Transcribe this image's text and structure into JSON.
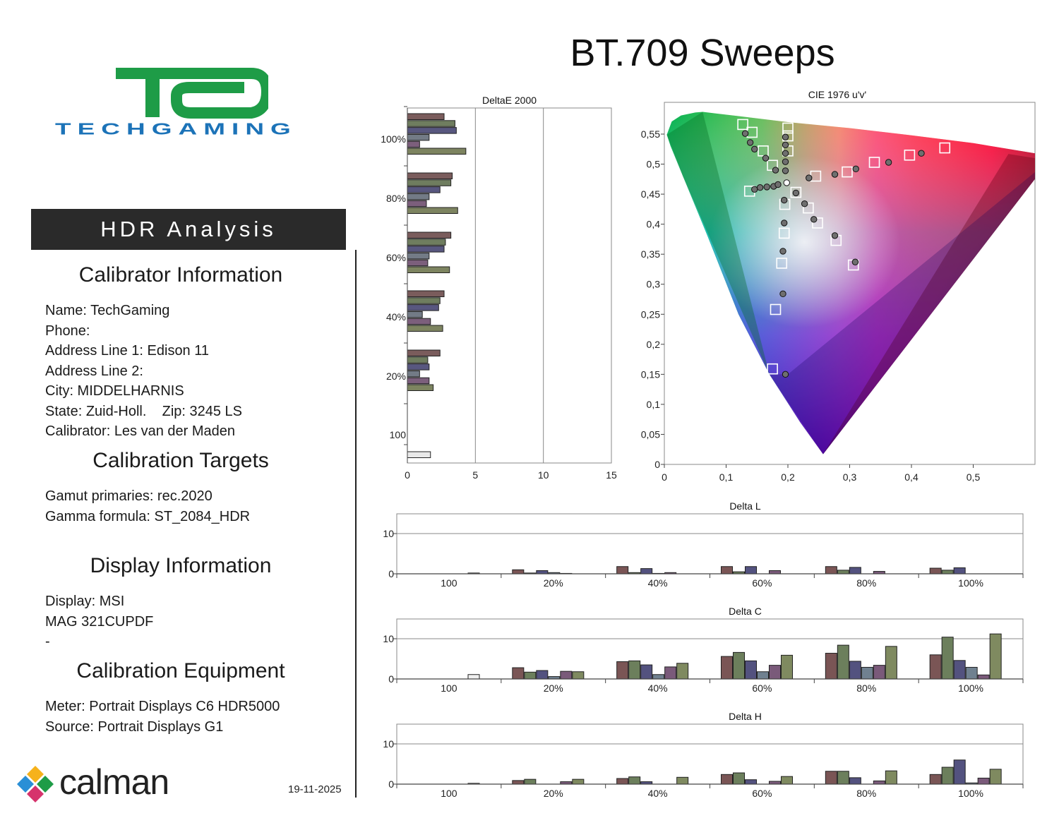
{
  "page_title": "BT.709 Sweeps",
  "logo": {
    "letters": "TG",
    "wordmark": "TECHGAMING",
    "color_green": "#1e9c47",
    "color_blue": "#1c73b8"
  },
  "left_panel": {
    "banner": "HDR Analysis",
    "calibrator": {
      "heading": "Calibrator Information",
      "lines": [
        "Name: TechGaming",
        "Phone:",
        "Address Line 1: Edison 11",
        "Address Line 2:",
        "City: MIDDELHARNIS",
        "State: Zuid-Holl.    Zip: 3245 LS",
        "Calibrator: Les van der Maden"
      ]
    },
    "targets": {
      "heading": "Calibration Targets",
      "lines": [
        "Gamut primaries: rec.2020",
        "Gamma formula: ST_2084_HDR"
      ]
    },
    "display": {
      "heading": "Display Information",
      "lines": [
        "Display: MSI",
        "MAG 321CUPDF",
        "-"
      ]
    },
    "equipment": {
      "heading": "Calibration Equipment",
      "lines": [
        "Meter: Portrait Displays C6 HDR5000",
        "Source: Portrait Displays G1"
      ]
    },
    "date": "19-11-2025",
    "brand": "calman"
  },
  "chart_data": [
    {
      "id": "deltae",
      "type": "bar",
      "orientation": "horizontal",
      "title": "DeltaE 2000",
      "xlim": [
        0,
        15
      ],
      "x_ticks": [
        "0",
        "5",
        "10",
        "15"
      ],
      "grid_x": [
        5,
        10,
        15
      ],
      "groups": [
        {
          "label": "100%",
          "values": [
            2.7,
            3.5,
            3.6,
            1.6,
            0.9,
            4.3
          ]
        },
        {
          "label": "80%",
          "values": [
            3.3,
            3.2,
            2.4,
            1.6,
            1.4,
            3.7
          ]
        },
        {
          "label": "60%",
          "values": [
            3.2,
            2.8,
            2.7,
            1.6,
            1.5,
            3.1
          ]
        },
        {
          "label": "40%",
          "values": [
            2.7,
            2.4,
            2.3,
            1.1,
            1.7,
            2.6
          ]
        },
        {
          "label": "20%",
          "values": [
            2.4,
            1.5,
            1.6,
            0.9,
            1.6,
            1.9
          ]
        },
        {
          "label": "100",
          "values": [
            1.7
          ]
        }
      ],
      "series_colors": [
        "#7a5c5c",
        "#6f7d5f",
        "#58577f",
        "#737b86",
        "#7c5f7c",
        "#7d8460"
      ],
      "white_color": "#e8e8e8"
    },
    {
      "id": "cie",
      "type": "scatter",
      "title": "CIE 1976 u'v'",
      "xlim": [
        0,
        0.6
      ],
      "ylim": [
        0,
        0.6
      ],
      "x_ticks": [
        "0",
        "0,1",
        "0,2",
        "0,3",
        "0,4",
        "0,5"
      ],
      "y_ticks": [
        "0",
        "0,05",
        "0,1",
        "0,15",
        "0,2",
        "0,25",
        "0,3",
        "0,35",
        "0,4",
        "0,45",
        "0,5",
        "0,55"
      ],
      "targets": [
        [
          0.127,
          0.566
        ],
        [
          0.142,
          0.553
        ],
        [
          0.16,
          0.522
        ],
        [
          0.175,
          0.498
        ],
        [
          0.2,
          0.56
        ],
        [
          0.2,
          0.547
        ],
        [
          0.2,
          0.522
        ],
        [
          0.245,
          0.48
        ],
        [
          0.296,
          0.487
        ],
        [
          0.34,
          0.503
        ],
        [
          0.397,
          0.515
        ],
        [
          0.454,
          0.527
        ],
        [
          0.138,
          0.455
        ],
        [
          0.195,
          0.433
        ],
        [
          0.213,
          0.453
        ],
        [
          0.233,
          0.427
        ],
        [
          0.248,
          0.402
        ],
        [
          0.278,
          0.373
        ],
        [
          0.306,
          0.332
        ],
        [
          0.194,
          0.385
        ],
        [
          0.19,
          0.335
        ],
        [
          0.18,
          0.258
        ],
        [
          0.175,
          0.159
        ]
      ],
      "measured": [
        [
          0.131,
          0.551
        ],
        [
          0.139,
          0.536
        ],
        [
          0.146,
          0.525
        ],
        [
          0.164,
          0.51
        ],
        [
          0.18,
          0.49
        ],
        [
          0.196,
          0.545
        ],
        [
          0.196,
          0.532
        ],
        [
          0.196,
          0.518
        ],
        [
          0.196,
          0.504
        ],
        [
          0.196,
          0.489
        ],
        [
          0.146,
          0.458
        ],
        [
          0.155,
          0.461
        ],
        [
          0.166,
          0.462
        ],
        [
          0.177,
          0.463
        ],
        [
          0.184,
          0.466
        ],
        [
          0.234,
          0.477
        ],
        [
          0.276,
          0.483
        ],
        [
          0.31,
          0.492
        ],
        [
          0.363,
          0.503
        ],
        [
          0.416,
          0.518
        ],
        [
          0.213,
          0.452
        ],
        [
          0.227,
          0.434
        ],
        [
          0.242,
          0.408
        ],
        [
          0.276,
          0.381
        ],
        [
          0.309,
          0.337
        ],
        [
          0.194,
          0.44
        ],
        [
          0.194,
          0.402
        ],
        [
          0.192,
          0.355
        ],
        [
          0.192,
          0.284
        ],
        [
          0.196,
          0.15
        ]
      ],
      "white_point": [
        0.198,
        0.469
      ],
      "locus": [
        [
          0.004,
          0.549
        ],
        [
          0.012,
          0.571
        ],
        [
          0.027,
          0.581
        ],
        [
          0.05,
          0.586
        ],
        [
          0.062,
          0.587
        ],
        [
          0.12,
          0.58
        ],
        [
          0.2,
          0.57
        ],
        [
          0.3,
          0.56
        ],
        [
          0.4,
          0.548
        ],
        [
          0.5,
          0.535
        ],
        [
          0.6,
          0.518
        ],
        [
          0.623,
          0.506
        ],
        [
          0.257,
          0.017
        ],
        [
          0.22,
          0.07
        ],
        [
          0.17,
          0.15
        ],
        [
          0.12,
          0.25
        ],
        [
          0.07,
          0.38
        ],
        [
          0.03,
          0.48
        ],
        [
          0.01,
          0.53
        ]
      ]
    },
    {
      "id": "delta-l",
      "type": "bar",
      "title": "Delta L",
      "ylim": [
        0,
        14
      ],
      "y_ticks": [
        "0",
        "10"
      ],
      "categories": [
        "100",
        "20%",
        "40%",
        "60%",
        "80%",
        "100%"
      ],
      "groups": [
        [
          0,
          0,
          0,
          0,
          0,
          0.2
        ],
        [
          1.0,
          0.2,
          0.8,
          0.3,
          0.1,
          0
        ],
        [
          1.8,
          0.3,
          1.3,
          0.1,
          0.3,
          0
        ],
        [
          1.8,
          0.5,
          1.8,
          0,
          0.8,
          0
        ],
        [
          1.8,
          0.9,
          1.6,
          0,
          0.6,
          0
        ],
        [
          1.4,
          0.9,
          1.5,
          0,
          0,
          0
        ]
      ]
    },
    {
      "id": "delta-c",
      "type": "bar",
      "title": "Delta C",
      "ylim": [
        0,
        14
      ],
      "y_ticks": [
        "0",
        "10"
      ],
      "categories": [
        "100",
        "20%",
        "40%",
        "60%",
        "80%",
        "100%"
      ],
      "groups": [
        [
          0,
          0,
          0,
          0,
          0,
          1.1
        ],
        [
          2.8,
          1.7,
          2.1,
          0.6,
          1.9,
          1.8
        ],
        [
          4.3,
          4.5,
          3.5,
          1.1,
          3.0,
          3.9
        ],
        [
          5.6,
          6.6,
          4.5,
          1.8,
          3.4,
          5.9
        ],
        [
          6.4,
          8.4,
          4.4,
          2.9,
          3.4,
          8.1
        ],
        [
          6.0,
          10.4,
          4.6,
          2.9,
          1.0,
          11.2
        ]
      ]
    },
    {
      "id": "delta-h",
      "type": "bar",
      "title": "Delta H",
      "ylim": [
        0,
        14
      ],
      "y_ticks": [
        "0",
        "10"
      ],
      "categories": [
        "100",
        "20%",
        "40%",
        "60%",
        "80%",
        "100%"
      ],
      "groups": [
        [
          0,
          0,
          0,
          0,
          0,
          0.2
        ],
        [
          0.9,
          1.2,
          0,
          0,
          0.6,
          1.2
        ],
        [
          1.4,
          1.8,
          0.6,
          0,
          0,
          1.7
        ],
        [
          2.4,
          2.8,
          1.1,
          0,
          0.7,
          1.9
        ],
        [
          3.2,
          3.2,
          1.6,
          0,
          0.8,
          3.3
        ],
        [
          2.4,
          4.2,
          6.0,
          0.3,
          1.5,
          3.7
        ]
      ]
    }
  ]
}
